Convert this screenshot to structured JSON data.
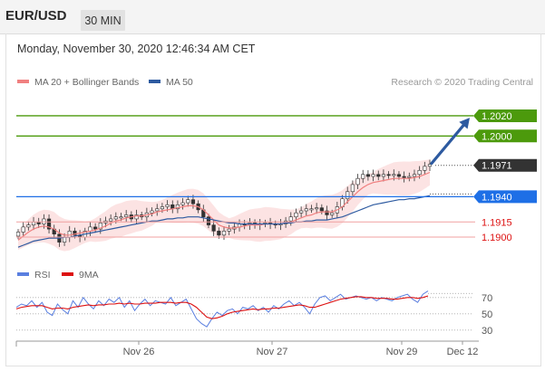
{
  "header": {
    "symbol": "EUR/USD",
    "timeframe": "30 MIN"
  },
  "datetime": "Monday, November 30, 2020 12:46:34 AM CET",
  "credit": "Research © 2020 Trading Central",
  "legend": {
    "items": [
      {
        "label": "MA 20 + Bollinger Bands",
        "color": "#f08080"
      },
      {
        "label": "MA 50",
        "color": "#2d5aa0"
      }
    ]
  },
  "rsi_legend": {
    "items": [
      {
        "label": "RSI",
        "color": "#5a7fe0"
      },
      {
        "label": "9MA",
        "color": "#dd1111"
      }
    ]
  },
  "chart_data": {
    "type": "candlestick",
    "price_range": [
      1.1875,
      1.2045
    ],
    "x_ticks": [
      "Nov 26",
      "Nov 27",
      "Nov 29",
      "Dec 12"
    ],
    "levels": [
      {
        "value": 1.202,
        "label": "1.2020",
        "color": "#4c9a0c",
        "kind": "resistance-box"
      },
      {
        "value": 1.2,
        "label": "1.2000",
        "color": "#4c9a0c",
        "kind": "resistance-box"
      },
      {
        "value": 1.1971,
        "label": "1.1971",
        "color": "#333333",
        "kind": "last-price"
      },
      {
        "value": 1.194,
        "label": "1.1940",
        "color": "#1e6fe6",
        "kind": "pivot-box"
      },
      {
        "value": 1.1915,
        "label": "1.1915",
        "color": "#dd1111",
        "kind": "support-text"
      },
      {
        "value": 1.19,
        "label": "1.1900",
        "color": "#dd1111",
        "kind": "support-text"
      }
    ],
    "close_path": [
      1.1905,
      1.191,
      1.1912,
      1.1915,
      1.1913,
      1.1918,
      1.1908,
      1.1903,
      1.1895,
      1.19,
      1.1906,
      1.1902,
      1.19,
      1.1906,
      1.191,
      1.1908,
      1.1914,
      1.1916,
      1.1918,
      1.192,
      1.192,
      1.1922,
      1.1918,
      1.1922,
      1.192,
      1.1924,
      1.1926,
      1.1928,
      1.193,
      1.1932,
      1.1928,
      1.1932,
      1.1934,
      1.1937,
      1.1933,
      1.1927,
      1.192,
      1.1912,
      1.1906,
      1.1902,
      1.1906,
      1.1908,
      1.191,
      1.1913,
      1.1912,
      1.1914,
      1.1912,
      1.1913,
      1.1914,
      1.1913,
      1.1912,
      1.1913,
      1.1916,
      1.192,
      1.1924,
      1.1926,
      1.1928,
      1.1928,
      1.1929,
      1.1926,
      1.1922,
      1.1924,
      1.193,
      1.1938,
      1.1945,
      1.1952,
      1.1958,
      1.1962,
      1.196,
      1.1962,
      1.196,
      1.1962,
      1.1961,
      1.1962,
      1.196,
      1.1959,
      1.196,
      1.1962,
      1.1966,
      1.197,
      1.1972
    ],
    "ma20_path": [
      1.1897,
      1.1901,
      1.1905,
      1.1908,
      1.191,
      1.1911,
      1.191,
      1.1908,
      1.1904,
      1.1902,
      1.1902,
      1.1903,
      1.1904,
      1.1905,
      1.1906,
      1.1907,
      1.1909,
      1.1911,
      1.1914,
      1.1916,
      1.1917,
      1.1919,
      1.192,
      1.1921,
      1.1921,
      1.1922,
      1.1923,
      1.1925,
      1.1926,
      1.1927,
      1.1928,
      1.1929,
      1.193,
      1.1931,
      1.1931,
      1.193,
      1.1927,
      1.1922,
      1.1917,
      1.1912,
      1.191,
      1.1909,
      1.1909,
      1.191,
      1.1911,
      1.1912,
      1.1912,
      1.1912,
      1.1913,
      1.1913,
      1.1913,
      1.1913,
      1.1914,
      1.1915,
      1.1917,
      1.1919,
      1.1921,
      1.1922,
      1.1924,
      1.1925,
      1.1925,
      1.1925,
      1.1927,
      1.193,
      1.1935,
      1.194,
      1.1945,
      1.1949,
      1.1952,
      1.1954,
      1.1955,
      1.1956,
      1.1957,
      1.1958,
      1.1958,
      1.1958,
      1.1958,
      1.1959,
      1.196,
      1.1962,
      1.1964
    ],
    "ma50_path": [
      1.189,
      1.1892,
      1.1894,
      1.1896,
      1.1897,
      1.1898,
      1.1899,
      1.1899,
      1.1899,
      1.19,
      1.19,
      1.1901,
      1.1902,
      1.1903,
      1.1904,
      1.1905,
      1.1906,
      1.1907,
      1.1908,
      1.1909,
      1.191,
      1.1911,
      1.1912,
      1.1913,
      1.1914,
      1.1915,
      1.1916,
      1.1916,
      1.1917,
      1.1918,
      1.1918,
      1.1919,
      1.1919,
      1.192,
      1.192,
      1.192,
      1.1919,
      1.1918,
      1.1917,
      1.1916,
      1.1915,
      1.1914,
      1.1914,
      1.1913,
      1.1913,
      1.1913,
      1.1913,
      1.1913,
      1.1913,
      1.1913,
      1.1913,
      1.1913,
      1.1914,
      1.1914,
      1.1915,
      1.1915,
      1.1916,
      1.1916,
      1.1917,
      1.1917,
      1.1917,
      1.1918,
      1.1919,
      1.192,
      1.1922,
      1.1924,
      1.1926,
      1.1928,
      1.193,
      1.1932,
      1.1933,
      1.1934,
      1.1935,
      1.1936,
      1.1937,
      1.1937,
      1.1938,
      1.1938,
      1.1939,
      1.194,
      1.1941
    ],
    "bb_width": 0.0012,
    "target_arrow": {
      "from": 1.1973,
      "to": 1.2018,
      "color": "#2d5aa0"
    },
    "rsi": {
      "ticks": [
        70,
        50,
        30
      ],
      "range": [
        22,
        82
      ],
      "rsi_path": [
        58,
        62,
        60,
        66,
        58,
        64,
        52,
        48,
        62,
        55,
        50,
        66,
        58,
        70,
        62,
        56,
        66,
        60,
        68,
        64,
        70,
        58,
        66,
        54,
        62,
        68,
        60,
        66,
        64,
        62,
        70,
        60,
        64,
        68,
        56,
        44,
        38,
        34,
        44,
        52,
        48,
        54,
        56,
        50,
        58,
        56,
        60,
        54,
        58,
        52,
        60,
        56,
        62,
        66,
        60,
        64,
        58,
        50,
        62,
        70,
        72,
        66,
        70,
        74,
        68,
        70,
        72,
        70,
        68,
        70,
        66,
        70,
        68,
        66,
        70,
        72,
        74,
        68,
        64,
        74,
        78
      ],
      "ma_path": [
        56,
        58,
        59,
        60,
        60,
        60,
        58,
        56,
        57,
        57,
        56,
        58,
        59,
        60,
        61,
        60,
        61,
        61,
        62,
        62,
        63,
        62,
        63,
        62,
        62,
        63,
        63,
        63,
        64,
        64,
        64,
        63,
        64,
        64,
        62,
        58,
        52,
        46,
        44,
        45,
        47,
        50,
        52,
        53,
        54,
        55,
        56,
        55,
        56,
        56,
        57,
        57,
        58,
        59,
        60,
        61,
        60,
        58,
        58,
        60,
        62,
        64,
        66,
        68,
        69,
        70,
        71,
        71,
        70,
        70,
        69,
        69,
        69,
        68,
        68,
        69,
        70,
        70,
        69,
        70,
        72
      ],
      "ob_level": 75
    }
  }
}
